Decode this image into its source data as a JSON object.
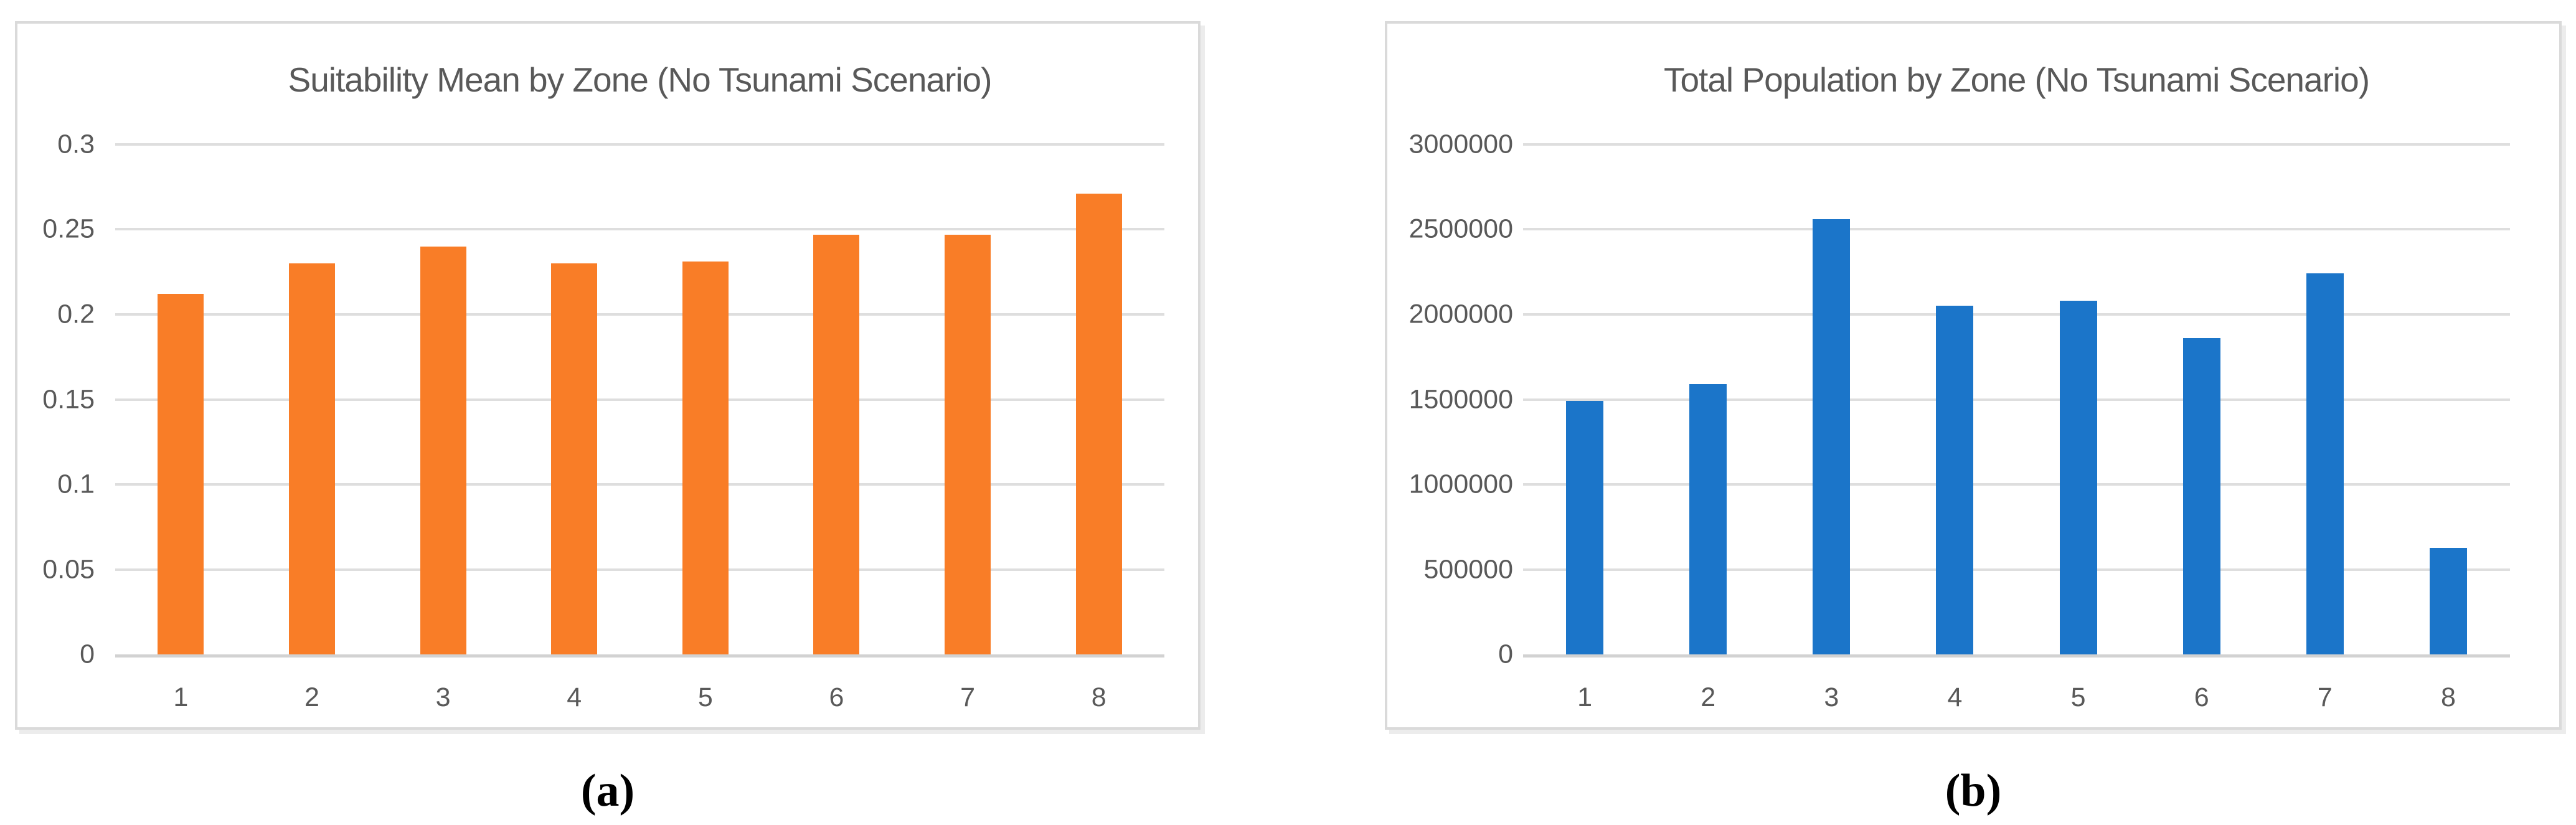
{
  "figures": [
    {
      "caption": "(a)"
    },
    {
      "caption": "(b)"
    }
  ],
  "chart_data": [
    {
      "type": "bar",
      "title": "Suitability Mean by Zone (No Tsunami Scenario)",
      "categories": [
        "1",
        "2",
        "3",
        "4",
        "5",
        "6",
        "7",
        "8"
      ],
      "values": [
        0.212,
        0.23,
        0.24,
        0.23,
        0.231,
        0.247,
        0.247,
        0.271
      ],
      "bar_color": "#F97D27",
      "xlabel": "",
      "ylabel": "",
      "ylim": [
        0,
        0.3
      ],
      "yticks": [
        0,
        0.05,
        0.1,
        0.15,
        0.2,
        0.25,
        0.3
      ],
      "ytick_labels": [
        "0",
        "0.05",
        "0.1",
        "0.15",
        "0.2",
        "0.25",
        "0.3"
      ],
      "grid": true,
      "legend": false
    },
    {
      "type": "bar",
      "title": "Total Population by Zone (No Tsunami Scenario)",
      "categories": [
        "1",
        "2",
        "3",
        "4",
        "5",
        "6",
        "7",
        "8"
      ],
      "values": [
        1490000,
        1590000,
        2560000,
        2050000,
        2080000,
        1860000,
        2240000,
        625000
      ],
      "bar_color": "#1B75C9",
      "xlabel": "",
      "ylabel": "",
      "ylim": [
        0,
        3000000
      ],
      "yticks": [
        0,
        500000,
        1000000,
        1500000,
        2000000,
        2500000,
        3000000
      ],
      "ytick_labels": [
        "0",
        "500000",
        "1000000",
        "1500000",
        "2000000",
        "2500000",
        "3000000"
      ],
      "grid": true,
      "legend": false
    }
  ],
  "colors": {
    "bar_orange": "#F97D27",
    "bar_blue": "#1B75C9",
    "axis_text": "#595959",
    "title_text": "#595959",
    "gridline": "#DEDEDE",
    "panel_border": "#DADADA"
  }
}
